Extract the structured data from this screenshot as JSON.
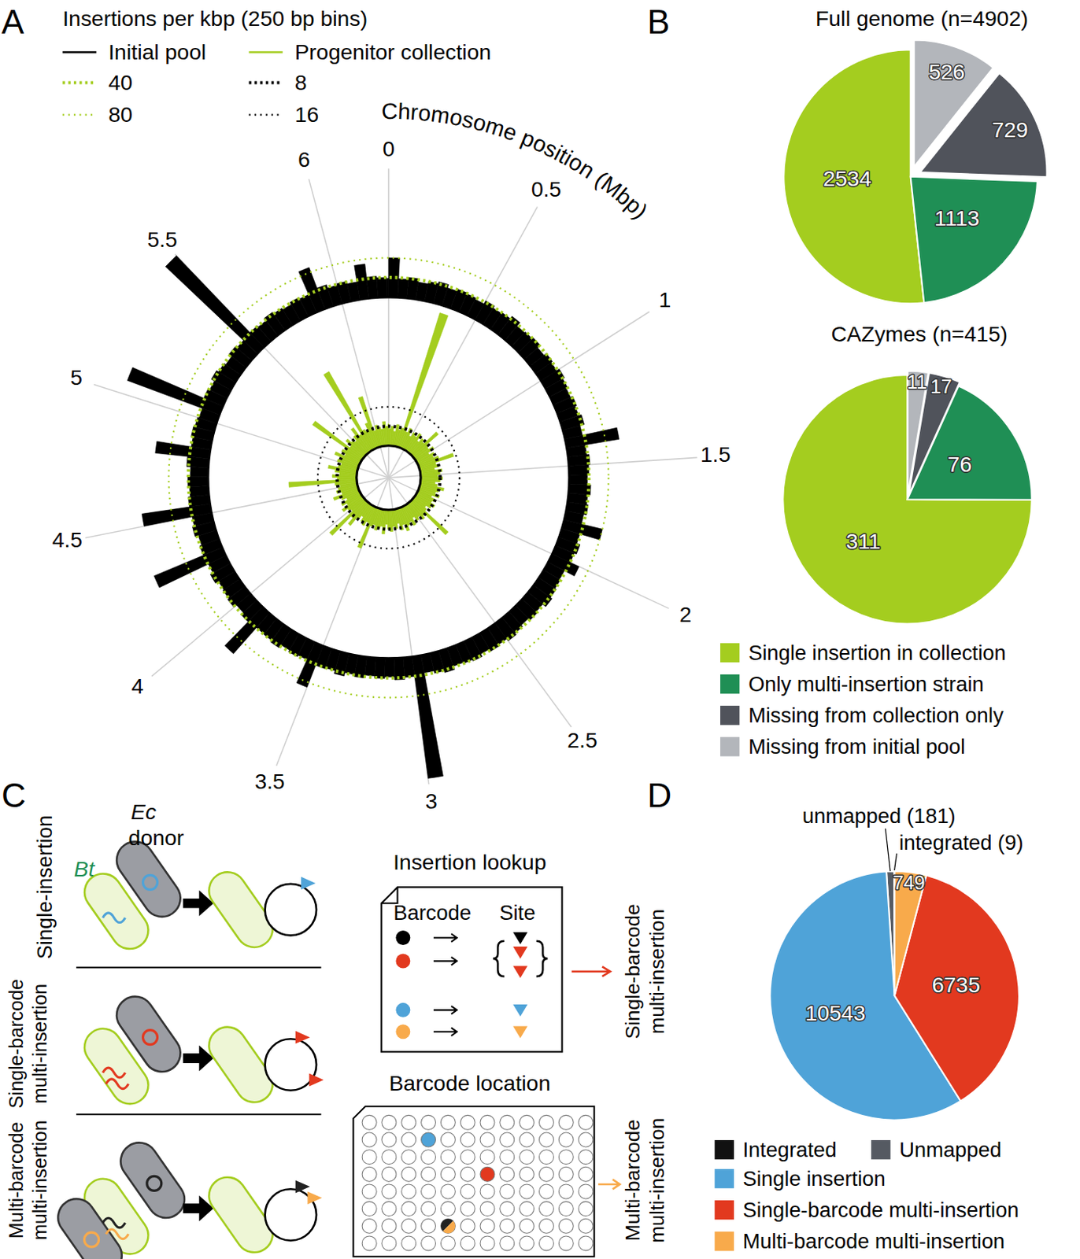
{
  "panel_labels": [
    "A",
    "B",
    "C",
    "D"
  ],
  "chart_data": [
    {
      "type": "radial_bar",
      "title": "Insertions per kbp (250 bp bins)",
      "x_label": "Chromosome position (Mbp)",
      "xlim": [
        0,
        6.26
      ],
      "xticks": [
        0,
        0.5,
        1,
        1.5,
        2,
        2.5,
        3,
        3.5,
        4,
        4.5,
        5,
        5.5,
        6
      ],
      "x": [
        0,
        0.05,
        0.1,
        0.15,
        0.2,
        0.25,
        0.3,
        0.35,
        0.4,
        0.45,
        0.5,
        0.55,
        0.6,
        0.65,
        0.7,
        0.75,
        0.8,
        0.85,
        0.9,
        0.95,
        1,
        1.05,
        1.1,
        1.15,
        1.2,
        1.25,
        1.3,
        1.35,
        1.4,
        1.45,
        1.5,
        1.55,
        1.6,
        1.65,
        1.7,
        1.75,
        1.8,
        1.85,
        1.9,
        1.95,
        2,
        2.05,
        2.1,
        2.15,
        2.2,
        2.25,
        2.3,
        2.35,
        2.4,
        2.45,
        2.5,
        2.55,
        2.6,
        2.65,
        2.7,
        2.75,
        2.8,
        2.85,
        2.9,
        2.95,
        3,
        3.05,
        3.1,
        3.15,
        3.2,
        3.25,
        3.3,
        3.35,
        3.4,
        3.45,
        3.5,
        3.55,
        3.6,
        3.65,
        3.7,
        3.75,
        3.8,
        3.85,
        3.9,
        3.95,
        4,
        4.05,
        4.1,
        4.15,
        4.2,
        4.25,
        4.3,
        4.35,
        4.4,
        4.45,
        4.5,
        4.55,
        4.6,
        4.65,
        4.7,
        4.75,
        4.8,
        4.85,
        4.9,
        4.95,
        5,
        5.05,
        5.1,
        5.15,
        5.2,
        5.25,
        5.3,
        5.35,
        5.4,
        5.45,
        5.5,
        5.55,
        5.6,
        5.65,
        5.7,
        5.75,
        5.8,
        5.85,
        5.9,
        5.95,
        6,
        6.05,
        6.1,
        6.15,
        6.2,
        6.25
      ],
      "series": [
        {
          "name": "Initial pool",
          "color": "#000000",
          "ylim": [
            0,
            262
          ],
          "values": [
            80,
            38,
            42,
            35,
            40,
            44,
            37,
            41,
            39,
            36,
            43,
            38,
            40,
            46,
            37,
            39,
            42,
            35,
            41,
            38,
            44,
            40,
            37,
            42,
            39,
            45,
            36,
            108,
            38,
            43,
            40,
            37,
            44,
            39,
            42,
            36,
            80,
            38,
            45,
            40,
            60,
            37,
            39,
            42,
            46,
            38,
            41,
            36,
            40,
            44,
            39,
            42,
            37,
            43,
            40,
            38,
            45,
            41,
            36,
            250,
            40,
            44,
            38,
            41,
            37,
            43,
            39,
            46,
            40,
            42,
            90,
            38,
            41,
            37,
            44,
            40,
            39,
            110,
            42,
            36,
            43,
            40,
            38,
            45,
            39,
            150,
            41,
            37,
            44,
            40,
            140,
            42,
            38,
            41,
            36,
            44,
            110,
            39,
            43,
            40,
            37,
            200,
            42,
            38,
            45,
            40,
            36,
            43,
            39,
            258,
            41,
            38,
            44,
            40,
            37,
            42,
            39,
            90,
            45,
            38,
            41,
            36,
            70,
            43,
            40,
            38
          ],
          "reference_lines": [
            {
              "value": 40,
              "color": "#a4cd1f",
              "line_style": "bold-dotted"
            },
            {
              "value": 80,
              "color": "#a4cd1f",
              "line_style": "dotted"
            }
          ]
        },
        {
          "name": "Progenitor collection",
          "color": "#a4cd1f",
          "ylim": [
            0,
            60
          ],
          "values": [
            7,
            8,
            6,
            9,
            7,
            8,
            58,
            7,
            9,
            6,
            8,
            7,
            9,
            6,
            8,
            7,
            14,
            8,
            7,
            9,
            6,
            8,
            7,
            9,
            15,
            7,
            8,
            6,
            9,
            8,
            7,
            9,
            8,
            6,
            7,
            10,
            8,
            7,
            9,
            6,
            8,
            7,
            9,
            8,
            6,
            7,
            20,
            8,
            9,
            7,
            8,
            6,
            9,
            7,
            8,
            10,
            7,
            9,
            6,
            8,
            7,
            9,
            8,
            6,
            10,
            7,
            8,
            9,
            7,
            8,
            18,
            7,
            9,
            8,
            6,
            8,
            12,
            9,
            20,
            7,
            8,
            10,
            7,
            9,
            6,
            8,
            11,
            7,
            9,
            8,
            7,
            9,
            28,
            8,
            10,
            7,
            9,
            12,
            8,
            7,
            9,
            8,
            11,
            7,
            9,
            8,
            25,
            7,
            10,
            8,
            7,
            9,
            12,
            8,
            37,
            9,
            8,
            11,
            22,
            7,
            9,
            8,
            7,
            10,
            8,
            9
          ],
          "reference_lines": [
            {
              "value": 8,
              "color": "#000000",
              "line_style": "bold-dotted"
            },
            {
              "value": 16,
              "color": "#000000",
              "line_style": "dotted"
            }
          ]
        }
      ]
    },
    {
      "type": "pie",
      "title": "Full genome (n=4902)",
      "categories": [
        "Single insertion in collection",
        "Only multi-insertion strain",
        "Missing from collection only",
        "Missing from initial pool"
      ],
      "values": [
        2534,
        1113,
        729,
        526
      ],
      "colors": [
        "#a4cd1f",
        "#1f8f55",
        "#50535b",
        "#b3b6bb"
      ],
      "data_labels": true,
      "legend": "bottom"
    },
    {
      "type": "pie",
      "title": "CAZymes (n=415)",
      "values": [
        311,
        76,
        17,
        11
      ],
      "colors": [
        "#a4cd1f",
        "#1f8f55",
        "#50535b",
        "#b3b6bb"
      ],
      "data_labels": true
    },
    {
      "type": "pie",
      "categories": [
        "Integrated",
        "Unmapped",
        "Single insertion",
        "Single-barcode multi-insertion",
        "Multi-barcode multi-insertion"
      ],
      "values": [
        9,
        181,
        10543,
        6735,
        749
      ],
      "value_labels": [
        "integrated (9)",
        "unmapped (181)",
        "10543",
        "6735",
        "749"
      ],
      "colors": [
        "#111111",
        "#555a62",
        "#4fa3d8",
        "#e2391f",
        "#f8aa4b"
      ],
      "data_labels": true,
      "legend": "bottom"
    }
  ],
  "diagram": {
    "row_labels": [
      [
        "Single-insertion"
      ],
      [
        "Single-barcode",
        "multi-insertion"
      ],
      [
        "Multi-barcode",
        "multi-insertion"
      ]
    ],
    "donor_label": [
      "Ec",
      "donor"
    ],
    "recipient_label": "Bt",
    "lookup": {
      "title": "Insertion lookup",
      "headers": [
        "Barcode",
        "Site"
      ]
    },
    "plate": {
      "title": "Barcode location"
    },
    "outcomes": [
      [
        "Single-barcode",
        "multi-insertion"
      ],
      [
        "Multi-barcode",
        "multi-insertion"
      ]
    ]
  }
}
